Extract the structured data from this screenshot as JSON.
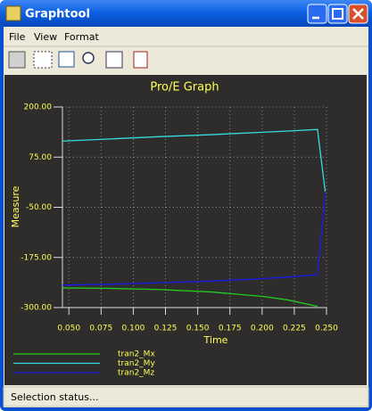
{
  "window": {
    "title": "Graphtool"
  },
  "menu": [
    "File",
    "View",
    "Format"
  ],
  "status": "Selection status...",
  "chart_data": {
    "type": "line",
    "title": "Pro/E Graph",
    "x_label": "Time",
    "y_label": "Measure",
    "x": [
      0.045,
      0.08,
      0.12,
      0.16,
      0.2,
      0.22,
      0.243,
      0.249
    ],
    "series": [
      {
        "name": "tran2_Mx",
        "color": "#22cc22",
        "values": [
          -251,
          -252,
          -255,
          -261,
          -272,
          -281,
          -297,
          null
        ]
      },
      {
        "name": "tran2_My",
        "color": "#33dddd",
        "values": [
          115,
          120,
          126,
          131,
          137,
          140,
          144,
          -11
        ]
      },
      {
        "name": "tran2_Mz",
        "color": "#1a1aee",
        "values": [
          -244,
          -242,
          -238,
          -234,
          -228,
          -224,
          -218,
          -14
        ]
      }
    ],
    "xlim": [
      0.045,
      0.25
    ],
    "ylim": [
      -300,
      200
    ],
    "xticks": [
      {
        "value": 0.05,
        "label": "0.050"
      },
      {
        "value": 0.075,
        "label": "0.075"
      },
      {
        "value": 0.1,
        "label": "0.100"
      },
      {
        "value": 0.125,
        "label": "0.125"
      },
      {
        "value": 0.15,
        "label": "0.150"
      },
      {
        "value": 0.175,
        "label": "0.175"
      },
      {
        "value": 0.2,
        "label": "0.200"
      },
      {
        "value": 0.225,
        "label": "0.225"
      },
      {
        "value": 0.25,
        "label": "0.250"
      }
    ],
    "yticks": [
      {
        "value": 200,
        "label": "200.00"
      },
      {
        "value": 75,
        "label": "75.00"
      },
      {
        "value": -50,
        "label": "-50.00"
      },
      {
        "value": -175,
        "label": "-175.00"
      },
      {
        "value": -300,
        "label": "-300.00"
      }
    ],
    "grid": true
  }
}
